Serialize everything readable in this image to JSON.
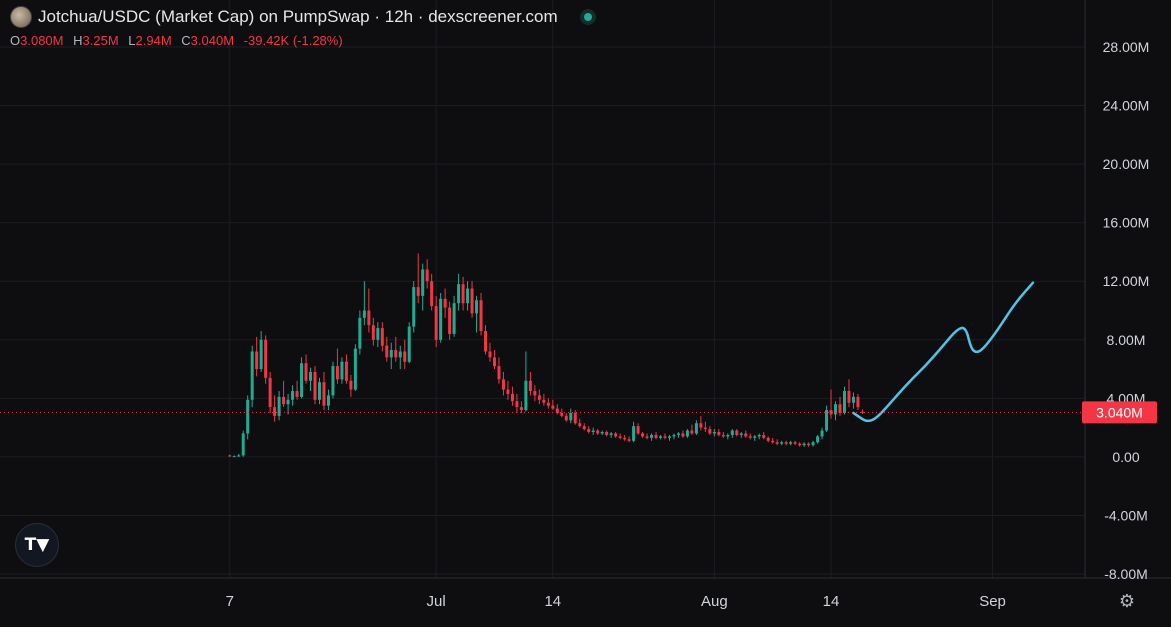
{
  "header": {
    "title": "Jotchua/USDC (Market Cap) on PumpSwap · 12h · dexscreener.com"
  },
  "ohlc": {
    "o_key": "O",
    "o": "3.080M",
    "h_key": "H",
    "h": "3.25M",
    "l_key": "L",
    "l": "2.94M",
    "c_key": "C",
    "c": "3.040M",
    "change": "-39.42K (-1.28%)"
  },
  "price_label": "3.040M",
  "colors": {
    "up": "#22ab94",
    "down": "#f23645",
    "overlay": "#4fc3e8",
    "background": "#0e0e10",
    "grid": "#1b1d22"
  },
  "chart_data": {
    "type": "candlestick",
    "interval": "12h",
    "y_unit": "USD market cap",
    "yticks": [
      {
        "v": 28,
        "label": "28.00M"
      },
      {
        "v": 24,
        "label": "24.00M"
      },
      {
        "v": 20,
        "label": "20.00M"
      },
      {
        "v": 16,
        "label": "16.00M"
      },
      {
        "v": 12,
        "label": "12.00M"
      },
      {
        "v": 8,
        "label": "8.00M"
      },
      {
        "v": 4,
        "label": "4.00M"
      },
      {
        "v": 0,
        "label": "0.00"
      },
      {
        "v": -4,
        "label": "-4.00M"
      },
      {
        "v": -8,
        "label": "-8.00M"
      }
    ],
    "xticks": [
      {
        "day": 7,
        "label": "7"
      },
      {
        "day": 30,
        "label": "Jul"
      },
      {
        "day": 43,
        "label": "14"
      },
      {
        "day": 61,
        "label": "Aug"
      },
      {
        "day": 74,
        "label": "14"
      },
      {
        "day": 92,
        "label": "Sep"
      }
    ],
    "ylim": [
      -8,
      28
    ],
    "xlim": [
      -18.6,
      102.3
    ],
    "last_close": 3.04,
    "candles": [
      [
        7,
        0.1,
        0.15,
        0.0,
        0.05
      ],
      [
        7.5,
        0.05,
        0.1,
        0.0,
        0.05
      ],
      [
        8,
        0.05,
        0.2,
        0.0,
        0.1
      ],
      [
        8.5,
        0.1,
        1.8,
        0.0,
        1.6
      ],
      [
        9,
        1.6,
        4.2,
        1.2,
        3.9
      ],
      [
        9.5,
        3.9,
        7.6,
        3.4,
        7.2
      ],
      [
        10,
        7.2,
        8.2,
        5.5,
        6.0
      ],
      [
        10.5,
        6.0,
        8.6,
        5.8,
        8.0
      ],
      [
        11,
        8.0,
        8.3,
        5.0,
        5.4
      ],
      [
        11.5,
        5.4,
        5.8,
        3.0,
        3.4
      ],
      [
        12,
        3.4,
        4.2,
        2.4,
        2.8
      ],
      [
        12.5,
        2.8,
        4.5,
        2.5,
        4.1
      ],
      [
        13,
        4.1,
        5.2,
        3.4,
        3.6
      ],
      [
        13.5,
        3.6,
        4.3,
        2.9,
        3.9
      ],
      [
        14,
        3.9,
        4.9,
        3.5,
        4.5
      ],
      [
        14.5,
        4.5,
        5.2,
        3.9,
        4.1
      ],
      [
        15,
        4.1,
        6.8,
        4.0,
        6.4
      ],
      [
        15.5,
        6.4,
        7.0,
        5.0,
        5.2
      ],
      [
        16,
        5.2,
        6.1,
        4.5,
        5.8
      ],
      [
        16.5,
        5.8,
        6.2,
        3.6,
        3.9
      ],
      [
        17,
        3.9,
        5.4,
        3.6,
        5.1
      ],
      [
        17.5,
        5.1,
        5.8,
        3.2,
        3.5
      ],
      [
        18,
        3.5,
        4.6,
        3.2,
        4.2
      ],
      [
        18.5,
        4.2,
        6.5,
        4.0,
        6.2
      ],
      [
        19,
        6.2,
        7.4,
        5.0,
        5.3
      ],
      [
        19.5,
        5.3,
        6.8,
        5.0,
        6.5
      ],
      [
        20,
        6.5,
        7.0,
        5.0,
        5.2
      ],
      [
        20.5,
        5.2,
        5.6,
        4.1,
        4.6
      ],
      [
        21,
        4.6,
        7.7,
        4.5,
        7.4
      ],
      [
        21.5,
        7.4,
        10.0,
        7.0,
        9.5
      ],
      [
        22,
        9.5,
        12.0,
        9.0,
        10.0
      ],
      [
        22.5,
        10.0,
        11.5,
        8.5,
        9.0
      ],
      [
        23,
        9.0,
        9.5,
        7.6,
        8.0
      ],
      [
        23.5,
        8.0,
        9.2,
        7.5,
        8.8
      ],
      [
        24,
        8.8,
        9.2,
        7.2,
        7.6
      ],
      [
        24.5,
        7.6,
        8.2,
        6.5,
        6.8
      ],
      [
        25,
        6.8,
        7.8,
        6.0,
        7.3
      ],
      [
        25.5,
        7.3,
        8.2,
        6.5,
        6.8
      ],
      [
        26,
        6.8,
        7.6,
        6.0,
        7.2
      ],
      [
        26.5,
        7.2,
        8.0,
        6.0,
        6.5
      ],
      [
        27,
        6.5,
        9.2,
        6.4,
        8.9
      ],
      [
        27.5,
        8.9,
        12.0,
        8.5,
        11.6
      ],
      [
        28,
        11.6,
        13.9,
        10.5,
        11.0
      ],
      [
        28.5,
        11.0,
        13.2,
        10.0,
        12.8
      ],
      [
        29,
        12.8,
        13.5,
        11.5,
        12.0
      ],
      [
        29.5,
        12.0,
        12.5,
        10.0,
        10.3
      ],
      [
        30,
        10.3,
        11.0,
        7.5,
        8.0
      ],
      [
        30.5,
        8.0,
        11.2,
        7.8,
        10.8
      ],
      [
        31,
        10.8,
        11.5,
        9.5,
        10.2
      ],
      [
        31.5,
        10.2,
        10.6,
        8.0,
        8.4
      ],
      [
        32,
        8.4,
        11.0,
        8.2,
        10.5
      ],
      [
        32.5,
        10.5,
        12.5,
        10.0,
        11.8
      ],
      [
        33,
        11.8,
        12.3,
        10.0,
        10.5
      ],
      [
        33.5,
        10.5,
        12.0,
        10.0,
        11.5
      ],
      [
        34,
        11.5,
        12.0,
        9.5,
        9.8
      ],
      [
        34.5,
        9.8,
        11.0,
        8.5,
        10.7
      ],
      [
        35,
        10.7,
        11.2,
        8.3,
        8.6
      ],
      [
        35.5,
        8.6,
        9.0,
        7.0,
        7.2
      ],
      [
        36,
        7.2,
        7.8,
        6.5,
        6.8
      ],
      [
        36.5,
        6.8,
        7.3,
        6.0,
        6.2
      ],
      [
        37,
        6.2,
        6.8,
        5.0,
        5.3
      ],
      [
        37.5,
        5.3,
        5.8,
        4.2,
        4.6
      ],
      [
        38,
        4.6,
        5.2,
        3.9,
        4.3
      ],
      [
        38.5,
        4.3,
        4.8,
        3.5,
        3.8
      ],
      [
        39,
        3.8,
        4.3,
        3.0,
        3.4
      ],
      [
        39.5,
        3.4,
        3.8,
        3.0,
        3.2
      ],
      [
        40,
        3.2,
        7.2,
        3.1,
        5.2
      ],
      [
        40.5,
        5.2,
        5.8,
        4.2,
        4.5
      ],
      [
        41,
        4.5,
        4.9,
        3.8,
        4.2
      ],
      [
        41.5,
        4.2,
        4.6,
        3.6,
        3.9
      ],
      [
        42,
        3.9,
        4.3,
        3.5,
        3.7
      ],
      [
        42.5,
        3.7,
        4.0,
        3.3,
        3.5
      ],
      [
        43,
        3.5,
        3.9,
        3.2,
        3.3
      ],
      [
        43.5,
        3.3,
        3.6,
        2.9,
        3.0
      ],
      [
        44,
        3.0,
        3.3,
        2.7,
        2.8
      ],
      [
        44.5,
        2.8,
        3.0,
        2.4,
        2.5
      ],
      [
        45,
        2.5,
        3.3,
        2.3,
        3.0
      ],
      [
        45.5,
        3.0,
        3.2,
        2.2,
        2.3
      ],
      [
        46,
        2.3,
        2.6,
        2.0,
        2.1
      ],
      [
        46.5,
        2.1,
        2.3,
        1.8,
        1.9
      ],
      [
        47,
        1.9,
        2.1,
        1.6,
        1.7
      ],
      [
        47.5,
        1.7,
        2.0,
        1.5,
        1.8
      ],
      [
        48,
        1.8,
        1.9,
        1.5,
        1.6
      ],
      [
        48.5,
        1.6,
        1.8,
        1.5,
        1.7
      ],
      [
        49,
        1.7,
        1.8,
        1.4,
        1.5
      ],
      [
        49.5,
        1.5,
        1.7,
        1.3,
        1.6
      ],
      [
        50,
        1.6,
        1.7,
        1.3,
        1.4
      ],
      [
        50.5,
        1.4,
        1.6,
        1.2,
        1.3
      ],
      [
        51,
        1.3,
        1.5,
        1.1,
        1.2
      ],
      [
        51.5,
        1.2,
        1.4,
        1.0,
        1.1
      ],
      [
        52,
        1.1,
        2.4,
        1.0,
        2.1
      ],
      [
        52.5,
        2.1,
        2.3,
        1.5,
        1.6
      ],
      [
        53,
        1.6,
        1.7,
        1.3,
        1.4
      ],
      [
        53.5,
        1.4,
        1.6,
        1.2,
        1.3
      ],
      [
        54,
        1.3,
        1.6,
        1.1,
        1.5
      ],
      [
        54.5,
        1.5,
        1.7,
        1.2,
        1.3
      ],
      [
        55,
        1.3,
        1.5,
        1.2,
        1.4
      ],
      [
        55.5,
        1.4,
        1.6,
        1.2,
        1.3
      ],
      [
        56,
        1.3,
        1.5,
        1.1,
        1.4
      ],
      [
        56.5,
        1.4,
        1.6,
        1.2,
        1.5
      ],
      [
        57,
        1.5,
        1.7,
        1.3,
        1.6
      ],
      [
        57.5,
        1.6,
        1.8,
        1.3,
        1.4
      ],
      [
        58,
        1.4,
        1.9,
        1.3,
        1.8
      ],
      [
        58.5,
        1.8,
        2.2,
        1.5,
        1.6
      ],
      [
        59,
        1.6,
        2.5,
        1.5,
        2.3
      ],
      [
        59.5,
        2.3,
        2.8,
        1.8,
        2.0
      ],
      [
        60,
        2.0,
        2.4,
        1.7,
        1.9
      ],
      [
        60.5,
        1.9,
        2.1,
        1.5,
        1.6
      ],
      [
        61,
        1.6,
        1.9,
        1.4,
        1.7
      ],
      [
        61.5,
        1.7,
        1.9,
        1.4,
        1.5
      ],
      [
        62,
        1.5,
        1.7,
        1.3,
        1.4
      ],
      [
        62.5,
        1.4,
        1.6,
        1.2,
        1.5
      ],
      [
        63,
        1.5,
        1.9,
        1.3,
        1.8
      ],
      [
        63.5,
        1.8,
        1.9,
        1.4,
        1.5
      ],
      [
        64,
        1.5,
        1.7,
        1.3,
        1.6
      ],
      [
        64.5,
        1.6,
        1.8,
        1.3,
        1.4
      ],
      [
        65,
        1.4,
        1.6,
        1.2,
        1.3
      ],
      [
        65.5,
        1.3,
        1.5,
        1.1,
        1.4
      ],
      [
        66,
        1.4,
        1.6,
        1.2,
        1.5
      ],
      [
        66.5,
        1.5,
        1.7,
        1.2,
        1.3
      ],
      [
        67,
        1.3,
        1.4,
        1.0,
        1.1
      ],
      [
        67.5,
        1.1,
        1.3,
        0.9,
        1.0
      ],
      [
        68,
        1.0,
        1.2,
        0.8,
        0.9
      ],
      [
        68.5,
        0.9,
        1.1,
        0.8,
        1.0
      ],
      [
        69,
        1.0,
        1.1,
        0.8,
        0.9
      ],
      [
        69.5,
        0.9,
        1.1,
        0.8,
        1.0
      ],
      [
        70,
        1.0,
        1.1,
        0.8,
        0.9
      ],
      [
        70.5,
        0.9,
        1.0,
        0.7,
        0.8
      ],
      [
        71,
        0.8,
        1.0,
        0.7,
        0.9
      ],
      [
        71.5,
        0.9,
        1.0,
        0.7,
        0.8
      ],
      [
        72,
        0.8,
        1.1,
        0.7,
        1.0
      ],
      [
        72.5,
        1.0,
        1.5,
        0.9,
        1.4
      ],
      [
        73,
        1.4,
        2.0,
        1.2,
        1.8
      ],
      [
        73.5,
        1.8,
        3.5,
        1.7,
        3.2
      ],
      [
        74,
        3.2,
        4.6,
        2.6,
        2.9
      ],
      [
        74.5,
        2.9,
        3.8,
        2.5,
        3.6
      ],
      [
        75,
        3.6,
        4.1,
        2.8,
        3.0
      ],
      [
        75.5,
        3.0,
        4.8,
        2.9,
        4.5
      ],
      [
        76,
        4.5,
        5.3,
        3.4,
        3.7
      ],
      [
        76.5,
        3.7,
        4.4,
        3.3,
        4.1
      ],
      [
        77,
        4.1,
        4.3,
        3.2,
        3.4
      ],
      [
        77.5,
        3.08,
        3.25,
        2.94,
        3.04
      ]
    ],
    "overlay": [
      [
        76.5,
        3.0
      ],
      [
        77.2,
        2.7
      ],
      [
        78.0,
        2.4
      ],
      [
        79.0,
        2.6
      ],
      [
        80.5,
        3.6
      ],
      [
        82.5,
        5.0
      ],
      [
        84.5,
        6.2
      ],
      [
        86.5,
        7.6
      ],
      [
        88.0,
        8.7
      ],
      [
        89.0,
        8.9
      ],
      [
        89.6,
        7.4
      ],
      [
        90.2,
        7.1
      ],
      [
        91.0,
        7.4
      ],
      [
        92.5,
        8.6
      ],
      [
        94.5,
        10.5
      ],
      [
        96.5,
        11.9
      ]
    ]
  }
}
